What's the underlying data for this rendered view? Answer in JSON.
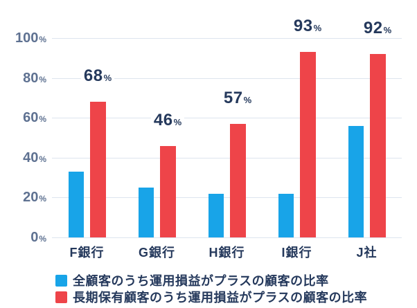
{
  "chart_data": {
    "type": "bar",
    "title": "",
    "categories": [
      "F銀行",
      "G銀行",
      "H銀行",
      "I銀行",
      "J社"
    ],
    "series": [
      {
        "key": "all-customers",
        "name": "全顧客のうち運用損益がプラスの顧客の比率",
        "color": "#18a4e8",
        "values": [
          33,
          25,
          22,
          22,
          56
        ],
        "value_labels_shown": false
      },
      {
        "key": "long-term-customers",
        "name": "長期保有顧客のうち運用損益がプラスの顧客の比率",
        "color": "#ee4449",
        "values": [
          68,
          46,
          57,
          93,
          92
        ],
        "value_labels_shown": true
      }
    ],
    "yticks": [
      0,
      20,
      40,
      60,
      80,
      100
    ],
    "ylim": [
      0,
      100
    ],
    "value_suffix": "%",
    "grid": true,
    "gridline_color": "#dde4ee",
    "legend_position": "bottom-left",
    "axis_label_color": "#5e7191",
    "text_color": "#25395c",
    "xlabel": "",
    "ylabel": ""
  }
}
